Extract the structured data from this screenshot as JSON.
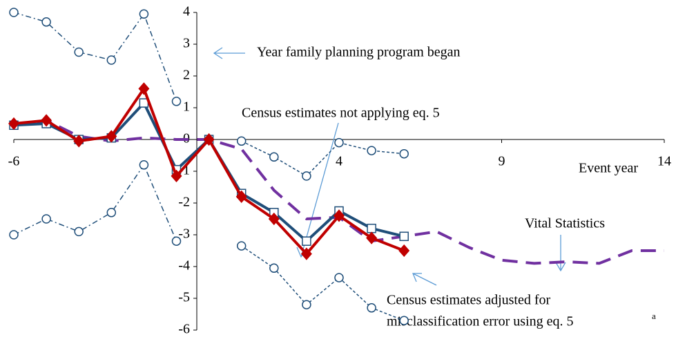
{
  "chart_data": {
    "type": "line",
    "xlim": [
      -6,
      14
    ],
    "ylim": [
      -6,
      4
    ],
    "xticks": [
      -6,
      4,
      9,
      14
    ],
    "yticks": [
      -6,
      -5,
      -4,
      -3,
      -2,
      -1,
      0,
      1,
      2,
      3,
      4
    ],
    "x_label": "Event year",
    "series": [
      {
        "color": "#7030a0",
        "dash": "22,12",
        "marker": "none",
        "x": [
          -6,
          -5,
          -4,
          -3,
          -2,
          -1,
          0,
          1,
          2,
          3,
          4,
          5,
          6,
          7,
          8,
          9,
          10,
          11,
          12,
          13,
          14
        ],
        "values": [
          0.45,
          0.6,
          0.1,
          -0.05,
          0.05,
          0,
          0,
          -0.3,
          -1.6,
          -2.5,
          -2.45,
          -3.2,
          -3.05,
          -2.9,
          -3.4,
          -3.8,
          -3.9,
          -3.85,
          -3.9,
          -3.5,
          -3.5
        ]
      },
      {
        "color": "#1f4e79",
        "dash": "",
        "marker": "square",
        "x": [
          -6,
          -5,
          -4,
          -3,
          -2,
          -1,
          0,
          1,
          2,
          3,
          4,
          5,
          6
        ],
        "values": [
          0.45,
          0.5,
          0,
          0.05,
          1.15,
          -0.95,
          0,
          -1.7,
          -2.3,
          -3.2,
          -2.25,
          -2.8,
          -3.05
        ]
      },
      {
        "color": "#c00000",
        "dash": "",
        "marker": "diamond",
        "x": [
          -6,
          -5,
          -4,
          -3,
          -2,
          -1,
          0,
          1,
          2,
          3,
          4,
          5,
          6
        ],
        "values": [
          0.5,
          0.6,
          -0.05,
          0.1,
          1.6,
          -1.15,
          0,
          -1.8,
          -2.5,
          -3.6,
          -2.4,
          -3.1,
          -3.5
        ]
      },
      {
        "color": "#1f4e79",
        "dash": "8,4,2,4",
        "marker": "circle",
        "x": [
          -6,
          -5,
          -4,
          -3,
          -2,
          -1
        ],
        "values": [
          4.0,
          3.7,
          2.75,
          2.5,
          3.95,
          1.2
        ]
      },
      {
        "color": "#1f4e79",
        "dash": "8,4,2,4",
        "marker": "circle",
        "x": [
          -6,
          -5,
          -4,
          -3,
          -2,
          -1
        ],
        "values": [
          -3.0,
          -2.5,
          -2.9,
          -2.3,
          -0.8,
          -3.2
        ]
      },
      {
        "color": "#1f4e79",
        "dash": "4,3",
        "marker": "circle",
        "x": [
          1,
          2,
          3,
          4,
          5,
          6
        ],
        "values": [
          -0.05,
          -0.55,
          -1.15,
          -0.1,
          -0.35,
          -0.45
        ]
      },
      {
        "color": "#1f4e79",
        "dash": "4,3",
        "marker": "circle",
        "x": [
          1,
          2,
          3,
          4,
          5,
          6
        ],
        "values": [
          -3.35,
          -4.05,
          -5.2,
          -4.35,
          -5.3,
          -5.7
        ]
      }
    ],
    "annotations": [
      "Year family planning program began",
      "Census estimates not applying eq. 5",
      "Vital Statistics",
      "Census estimates adjusted for",
      "misclassification error using eq. 5",
      "a"
    ]
  }
}
